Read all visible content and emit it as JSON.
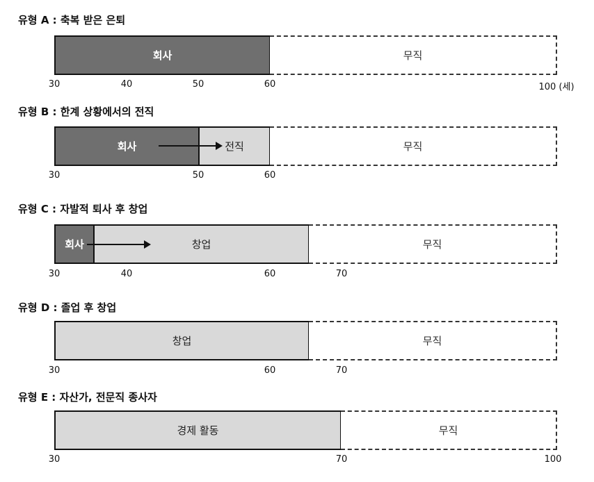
{
  "typeA": {
    "title": "유형 A : 축복 받은 은퇴",
    "company": "회사",
    "none": "무직",
    "ticks": [
      "30",
      "40",
      "50",
      "60",
      "100 (세)"
    ]
  },
  "typeB": {
    "title": "유형 B : 한계 상황에서의 전직",
    "company": "회사",
    "transfer": "전직",
    "none": "무직",
    "ticks": [
      "30",
      "50",
      "60"
    ]
  },
  "typeC": {
    "title": "유형 C : 자발적 퇴사 후 창업",
    "company": "회사",
    "startup": "창업",
    "none": "무직",
    "ticks": [
      "30",
      "40",
      "60",
      "70"
    ]
  },
  "typeD": {
    "title": "유형 D : 졸업 후 창업",
    "startup": "창업",
    "none": "무직",
    "ticks": [
      "30",
      "60",
      "70"
    ]
  },
  "typeE": {
    "title": "유형 E : 자산가, 전문직 종사자",
    "activity": "경제 활동",
    "none": "무직",
    "ticks": [
      "30",
      "70",
      "100"
    ]
  }
}
